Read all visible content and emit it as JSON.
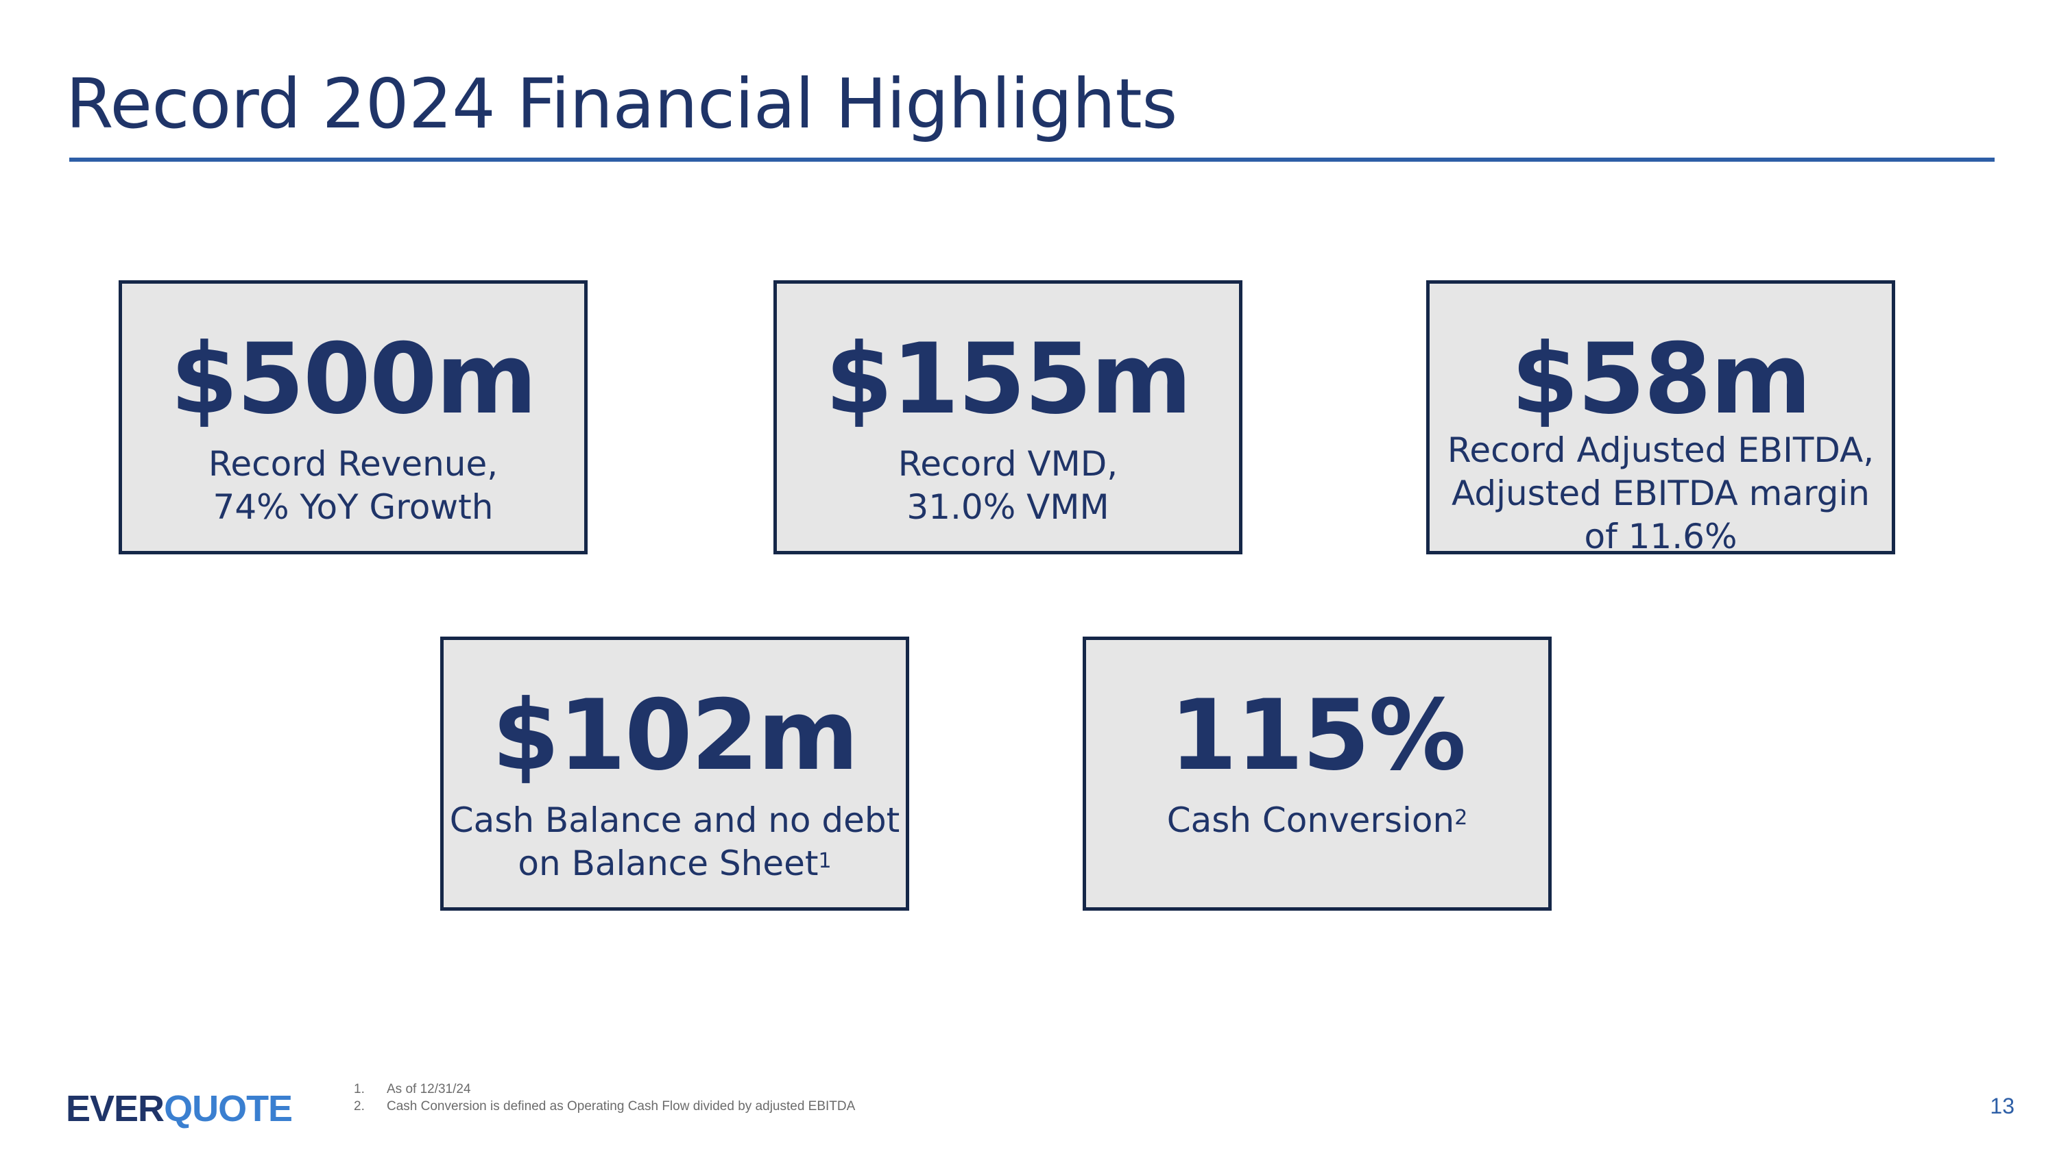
{
  "slide": {
    "title": "Record 2024 Financial Highlights",
    "page_number": "13"
  },
  "cards": [
    {
      "metric": "$500m",
      "caption_lines": [
        "Record Revenue,",
        "74% YoY Growth"
      ]
    },
    {
      "metric": "$155m",
      "caption_lines": [
        "Record VMD,",
        "31.0% VMM"
      ]
    },
    {
      "metric": "$58m",
      "caption_lines": [
        "Record Adjusted EBITDA,",
        "Adjusted EBITDA margin",
        "of 11.6%"
      ]
    },
    {
      "metric": "$102m",
      "caption_lines": [
        "Cash Balance and no debt",
        "on Balance Sheet"
      ],
      "footnote_ref": "1"
    },
    {
      "metric": "115%",
      "caption_lines": [
        "Cash Conversion"
      ],
      "footnote_ref": "2"
    }
  ],
  "logo": {
    "part1": "EVER",
    "part2": "QUOTE",
    "colors": {
      "ever": "#1f3468",
      "quote": "#3a7fd0"
    }
  },
  "footnotes": [
    {
      "num": "1.",
      "text": "As of 12/31/24"
    },
    {
      "num": "2.",
      "text": "Cash Conversion is defined as Operating Cash Flow divided by adjusted EBITDA"
    }
  ],
  "colors": {
    "primary_navy": "#1f3468",
    "accent_blue": "#2d5ea6",
    "card_fill": "#e6e6e6",
    "card_border": "#152748"
  }
}
